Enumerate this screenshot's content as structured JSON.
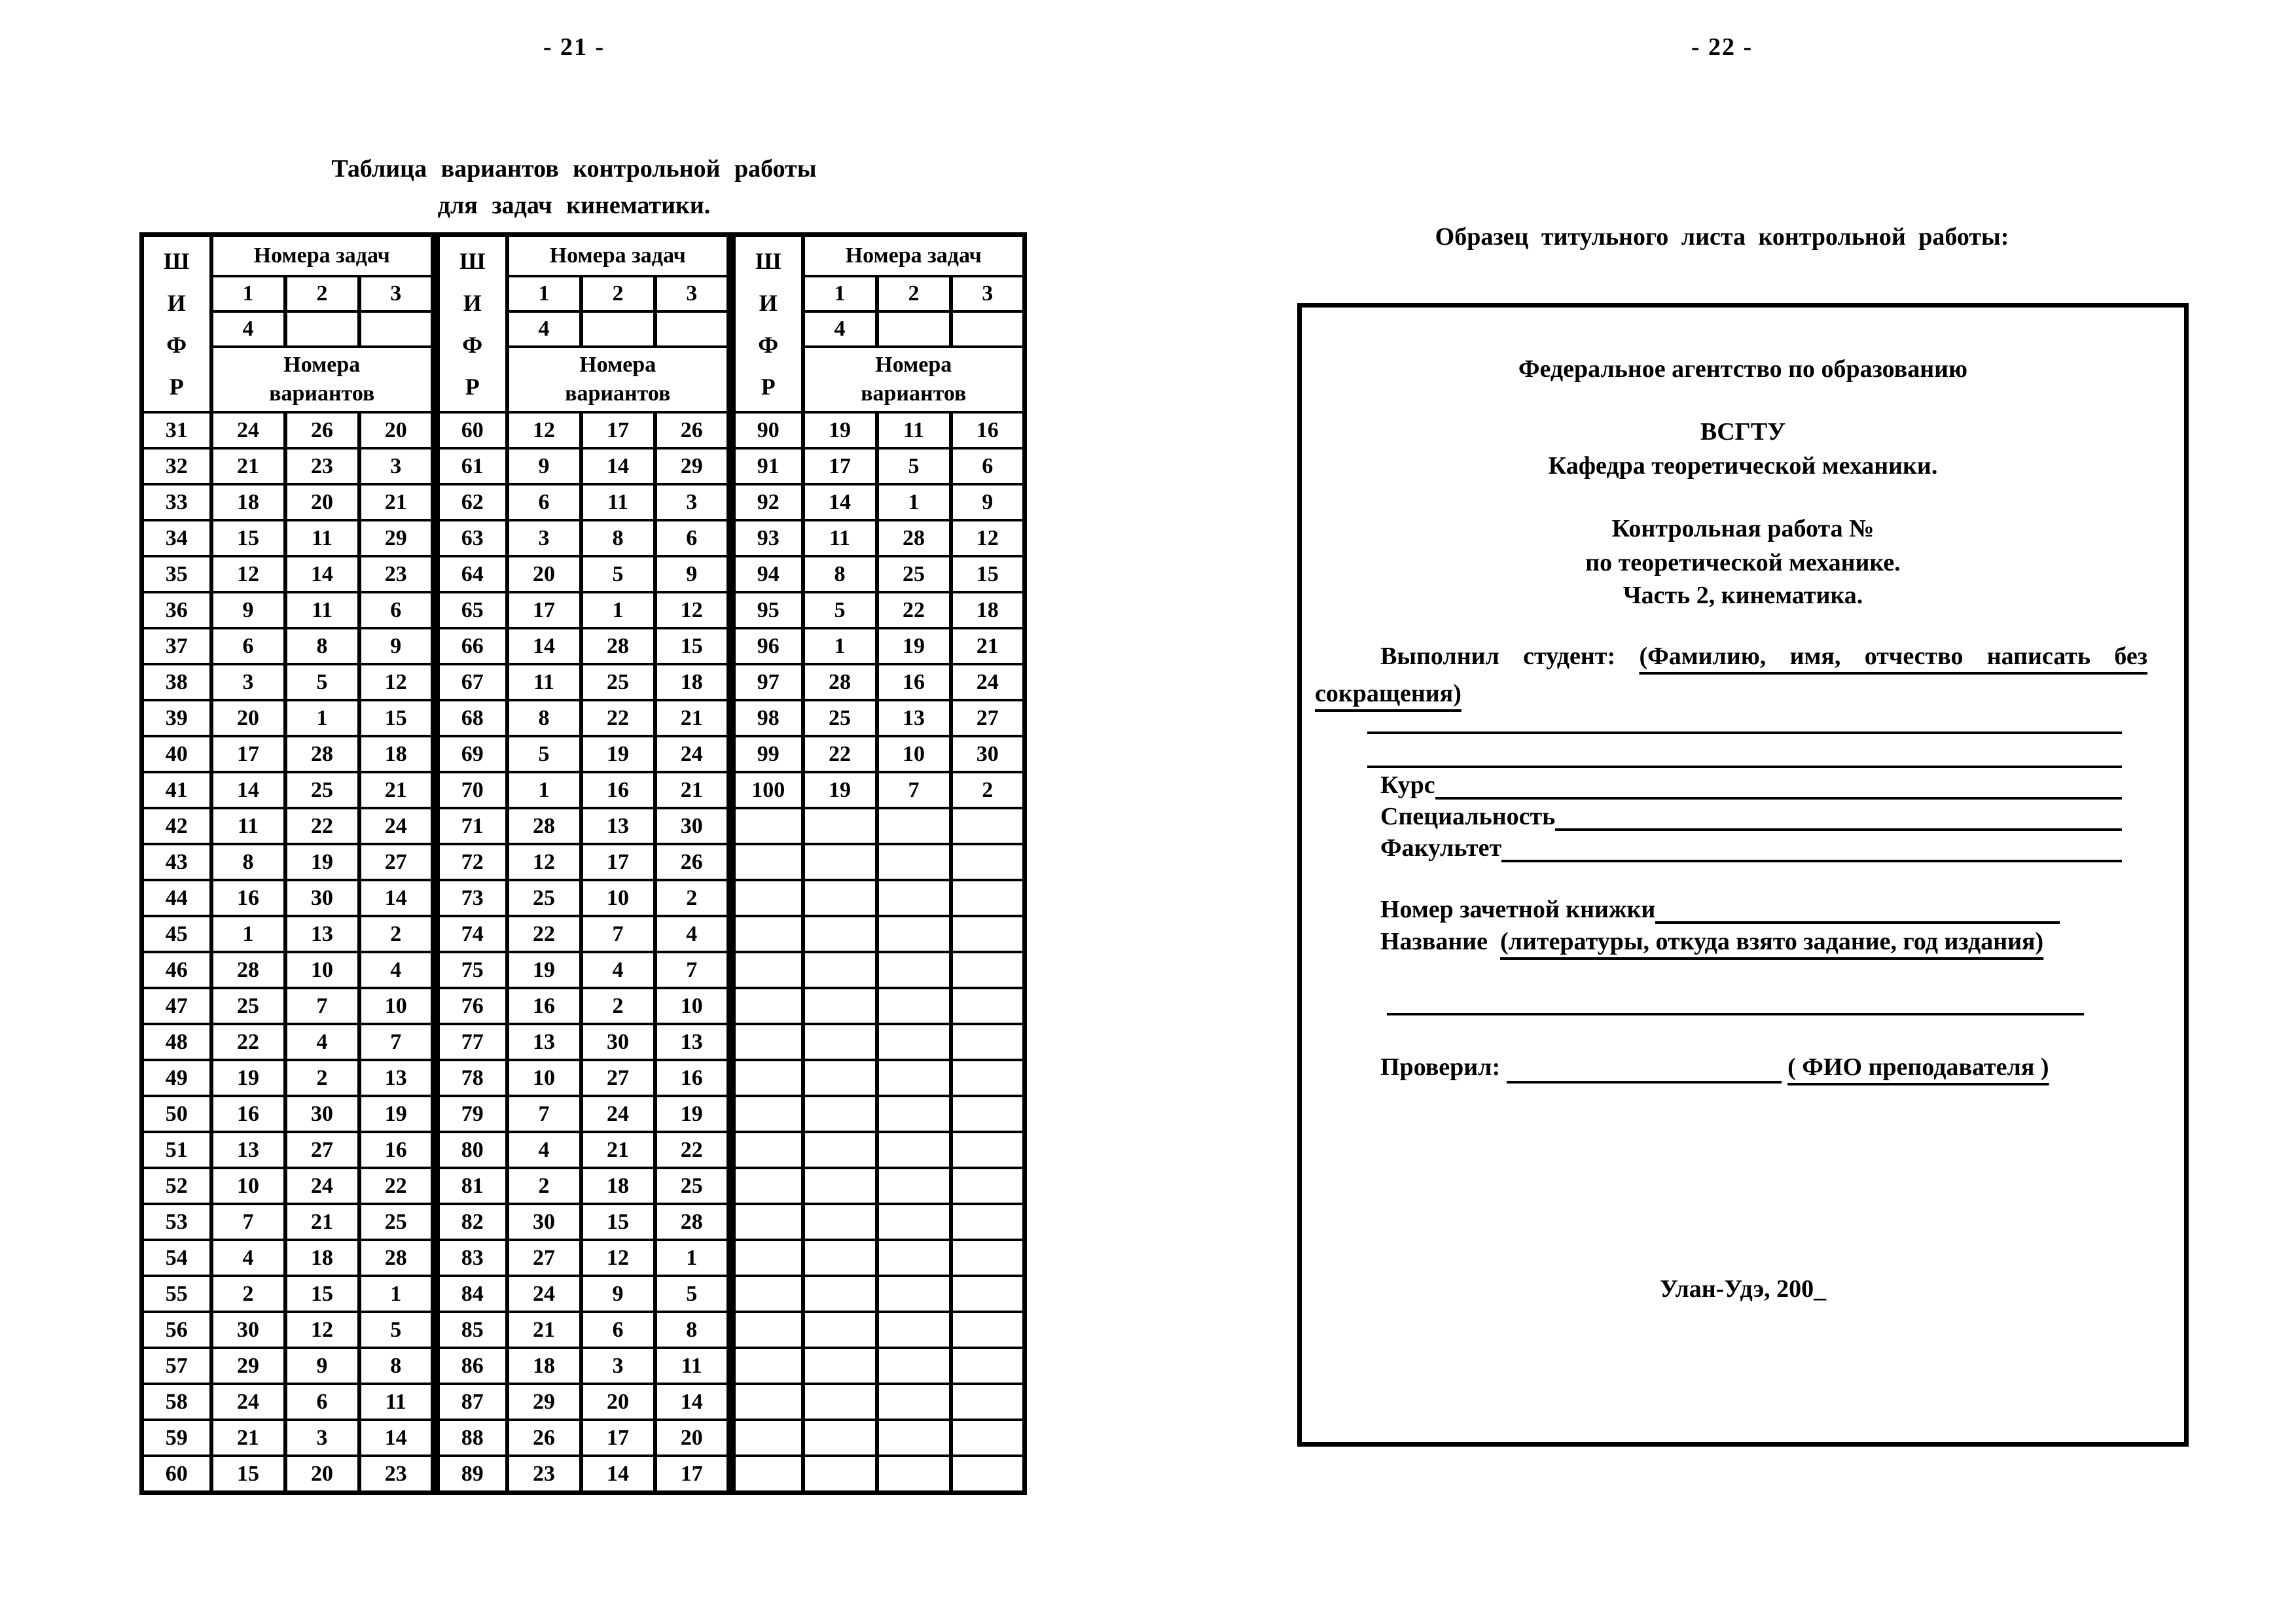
{
  "page21": {
    "page_number": "- 21 -",
    "title_line1": "Таблица вариантов контрольной работы",
    "title_line2": "для задач кинематики.",
    "table": {
      "shifr_letters": [
        "Ш",
        "И",
        "Ф",
        "Р"
      ],
      "tasks_header": "Номера задач",
      "task_numbers": [
        "1",
        "2",
        "3"
      ],
      "task_number_4": "4",
      "variants_header_line1": "Номера",
      "variants_header_line2": "вариантов",
      "groups": [
        {
          "rows": [
            [
              "31",
              "24",
              "26",
              "20"
            ],
            [
              "32",
              "21",
              "23",
              "3"
            ],
            [
              "33",
              "18",
              "20",
              "21"
            ],
            [
              "34",
              "15",
              "11",
              "29"
            ],
            [
              "35",
              "12",
              "14",
              "23"
            ],
            [
              "36",
              "9",
              "11",
              "6"
            ],
            [
              "37",
              "6",
              "8",
              "9"
            ],
            [
              "38",
              "3",
              "5",
              "12"
            ],
            [
              "39",
              "20",
              "1",
              "15"
            ],
            [
              "40",
              "17",
              "28",
              "18"
            ],
            [
              "41",
              "14",
              "25",
              "21"
            ],
            [
              "42",
              "11",
              "22",
              "24"
            ],
            [
              "43",
              "8",
              "19",
              "27"
            ],
            [
              "44",
              "16",
              "30",
              "14"
            ],
            [
              "45",
              "1",
              "13",
              "2"
            ],
            [
              "46",
              "28",
              "10",
              "4"
            ],
            [
              "47",
              "25",
              "7",
              "10"
            ],
            [
              "48",
              "22",
              "4",
              "7"
            ],
            [
              "49",
              "19",
              "2",
              "13"
            ],
            [
              "50",
              "16",
              "30",
              "19"
            ],
            [
              "51",
              "13",
              "27",
              "16"
            ],
            [
              "52",
              "10",
              "24",
              "22"
            ],
            [
              "53",
              "7",
              "21",
              "25"
            ],
            [
              "54",
              "4",
              "18",
              "28"
            ],
            [
              "55",
              "2",
              "15",
              "1"
            ],
            [
              "56",
              "30",
              "12",
              "5"
            ],
            [
              "57",
              "29",
              "9",
              "8"
            ],
            [
              "58",
              "24",
              "6",
              "11"
            ],
            [
              "59",
              "21",
              "3",
              "14"
            ],
            [
              "60",
              "15",
              "20",
              "23"
            ]
          ]
        },
        {
          "rows": [
            [
              "60",
              "12",
              "17",
              "26"
            ],
            [
              "61",
              "9",
              "14",
              "29"
            ],
            [
              "62",
              "6",
              "11",
              "3"
            ],
            [
              "63",
              "3",
              "8",
              "6"
            ],
            [
              "64",
              "20",
              "5",
              "9"
            ],
            [
              "65",
              "17",
              "1",
              "12"
            ],
            [
              "66",
              "14",
              "28",
              "15"
            ],
            [
              "67",
              "11",
              "25",
              "18"
            ],
            [
              "68",
              "8",
              "22",
              "21"
            ],
            [
              "69",
              "5",
              "19",
              "24"
            ],
            [
              "70",
              "1",
              "16",
              "21"
            ],
            [
              "71",
              "28",
              "13",
              "30"
            ],
            [
              "72",
              "12",
              "17",
              "26"
            ],
            [
              "73",
              "25",
              "10",
              "2"
            ],
            [
              "74",
              "22",
              "7",
              "4"
            ],
            [
              "75",
              "19",
              "4",
              "7"
            ],
            [
              "76",
              "16",
              "2",
              "10"
            ],
            [
              "77",
              "13",
              "30",
              "13"
            ],
            [
              "78",
              "10",
              "27",
              "16"
            ],
            [
              "79",
              "7",
              "24",
              "19"
            ],
            [
              "80",
              "4",
              "21",
              "22"
            ],
            [
              "81",
              "2",
              "18",
              "25"
            ],
            [
              "82",
              "30",
              "15",
              "28"
            ],
            [
              "83",
              "27",
              "12",
              "1"
            ],
            [
              "84",
              "24",
              "9",
              "5"
            ],
            [
              "85",
              "21",
              "6",
              "8"
            ],
            [
              "86",
              "18",
              "3",
              "11"
            ],
            [
              "87",
              "29",
              "20",
              "14"
            ],
            [
              "88",
              "26",
              "17",
              "20"
            ],
            [
              "89",
              "23",
              "14",
              "17"
            ]
          ]
        },
        {
          "rows": [
            [
              "90",
              "19",
              "11",
              "16"
            ],
            [
              "91",
              "17",
              "5",
              "6"
            ],
            [
              "92",
              "14",
              "1",
              "9"
            ],
            [
              "93",
              "11",
              "28",
              "12"
            ],
            [
              "94",
              "8",
              "25",
              "15"
            ],
            [
              "95",
              "5",
              "22",
              "18"
            ],
            [
              "96",
              "1",
              "19",
              "21"
            ],
            [
              "97",
              "28",
              "16",
              "24"
            ],
            [
              "98",
              "25",
              "13",
              "27"
            ],
            [
              "99",
              "22",
              "10",
              "30"
            ],
            [
              "100",
              "19",
              "7",
              "2"
            ],
            [
              "",
              "",
              "",
              ""
            ],
            [
              "",
              "",
              "",
              ""
            ],
            [
              "",
              "",
              "",
              ""
            ],
            [
              "",
              "",
              "",
              ""
            ],
            [
              "",
              "",
              "",
              ""
            ],
            [
              "",
              "",
              "",
              ""
            ],
            [
              "",
              "",
              "",
              ""
            ],
            [
              "",
              "",
              "",
              ""
            ],
            [
              "",
              "",
              "",
              ""
            ],
            [
              "",
              "",
              "",
              ""
            ],
            [
              "",
              "",
              "",
              ""
            ],
            [
              "",
              "",
              "",
              ""
            ],
            [
              "",
              "",
              "",
              ""
            ],
            [
              "",
              "",
              "",
              ""
            ],
            [
              "",
              "",
              "",
              ""
            ],
            [
              "",
              "",
              "",
              ""
            ],
            [
              "",
              "",
              "",
              ""
            ],
            [
              "",
              "",
              "",
              ""
            ],
            [
              "",
              "",
              "",
              ""
            ]
          ]
        }
      ]
    }
  },
  "page22": {
    "page_number": "- 22 -",
    "title": "Образец титульного листа контрольной работы:",
    "box": {
      "agency": "Федеральное агентство по образованию",
      "university": "ВСГТУ",
      "department": "Кафедра теоретической механики.",
      "work_title": "Контрольная работа №",
      "work_subject": "по теоретической механике.",
      "work_part": "Часть 2, кинематика.",
      "student_label": "Выполнил студент:",
      "student_hint_line1": "(Фамилию, имя, отчество написать без",
      "student_hint_line2": "сокращения)",
      "course_label": "Курс",
      "speciality_label": "Специальность",
      "faculty_label": "Факультет",
      "gradebook_label": "Номер зачетной книжки",
      "source_label": "Название",
      "source_hint": "(литературы, откуда взято задание, год издания)",
      "checked_label": "Проверил:",
      "checked_hint": "( ФИО преподавателя )",
      "city_year": "Улан-Удэ, 200_"
    }
  }
}
